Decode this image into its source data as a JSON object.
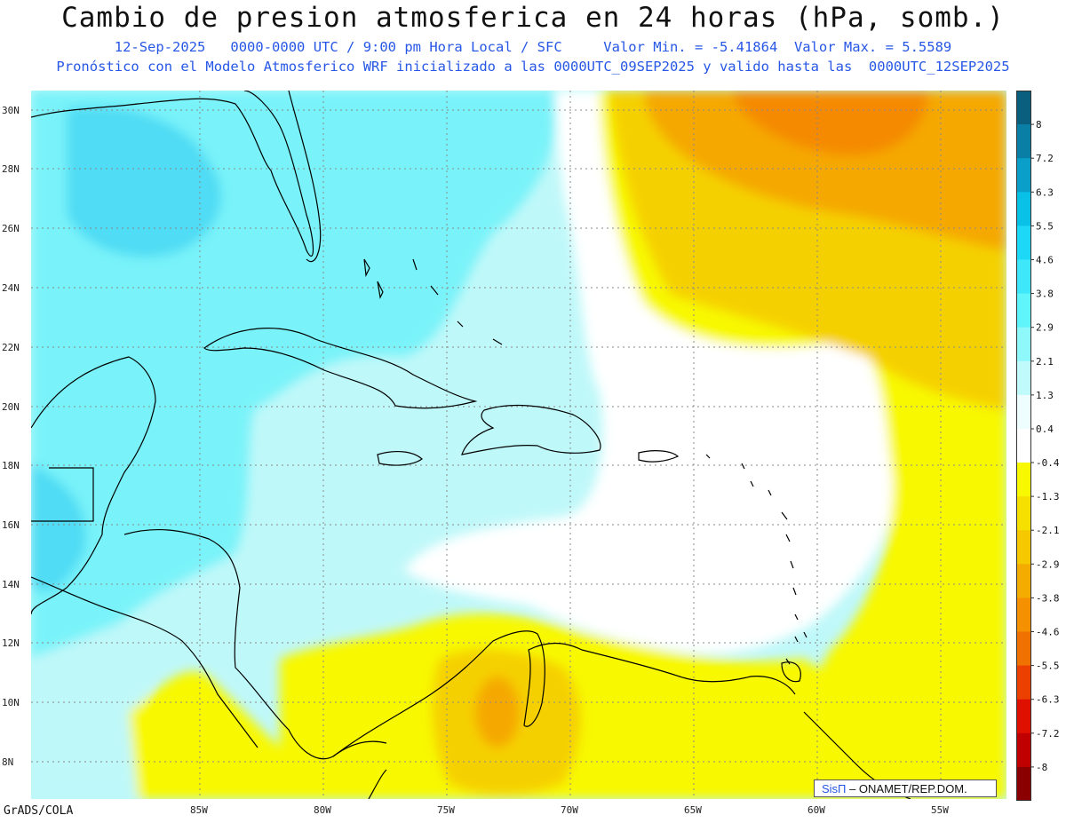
{
  "title": "Cambio de presion atmosferica en 24 horas (hPa, somb.)",
  "subtitle1": "12-Sep-2025   0000-0000 UTC / 9:00 pm Hora Local / SFC     Valor Min. = -5.41864  Valor Max. = 5.5589",
  "subtitle2": "Pronóstico con el Modelo Atmosferico WRF inicializado a las 0000UTC_09SEP2025 y valido hasta las  0000UTC_12SEP2025",
  "lat_labels": [
    "30N",
    "28N",
    "26N",
    "24N",
    "22N",
    "20N",
    "18N",
    "16N",
    "14N",
    "12N",
    "10N",
    "8N"
  ],
  "lon_labels": [
    "85W",
    "80W",
    "75W",
    "70W",
    "65W",
    "60W",
    "55W"
  ],
  "colorbar": {
    "labels": [
      "8",
      "7.2",
      "6.3",
      "5.5",
      "4.6",
      "3.8",
      "2.9",
      "2.1",
      "1.3",
      "0.4",
      "-0.4",
      "-1.3",
      "-2.1",
      "-2.9",
      "-3.8",
      "-4.6",
      "-5.5",
      "-6.3",
      "-7.2",
      "-8"
    ],
    "colors": [
      "#0a5f7e",
      "#0a7fa6",
      "#0a9fc8",
      "#09c0e6",
      "#1dd8f6",
      "#3ee8fa",
      "#60f4fb",
      "#8ff8fb",
      "#c0fafa",
      "#eefefe",
      "#ffffff",
      "#f8f800",
      "#f5e000",
      "#f5c800",
      "#f5ac00",
      "#f59000",
      "#f07000",
      "#ec4000",
      "#e01000",
      "#c00000",
      "#8a0000"
    ]
  },
  "regions": {
    "water_blue_dark": "#4fdcf4",
    "water_blue_mid": "#79f3f9",
    "water_blue_light": "#bff8f9",
    "neutral": "#ffffff",
    "yellow": "#f8f800",
    "gold": "#f5d000",
    "orange": "#f5a800",
    "dark_orange": "#f58a00"
  },
  "credit": {
    "brand": "SisΠ",
    "text": "– ONAMET/REP.DOM."
  },
  "footer": "GrADS/COLA"
}
